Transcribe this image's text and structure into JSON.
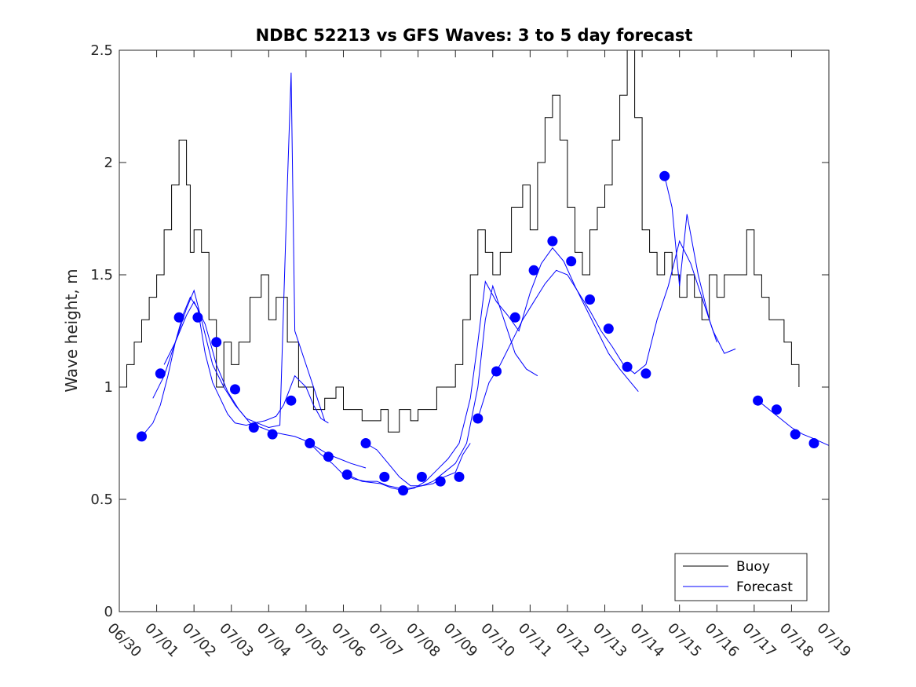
{
  "chart_data": {
    "type": "line",
    "title": "NDBC 52213 vs GFS Waves: 3 to 5 day forecast",
    "xlabel": "",
    "ylabel": "Wave height, m",
    "xlim": [
      "06/30",
      "07/19"
    ],
    "ylim": [
      0,
      2.5
    ],
    "x_tick_labels": [
      "06/30",
      "07/01",
      "07/02",
      "07/03",
      "07/04",
      "07/05",
      "07/06",
      "07/07",
      "07/08",
      "07/09",
      "07/10",
      "07/11",
      "07/12",
      "07/13",
      "07/14",
      "07/15",
      "07/16",
      "07/17",
      "07/18",
      "07/19"
    ],
    "y_ticks": [
      0,
      0.5,
      1,
      1.5,
      2,
      2.5
    ],
    "y_tick_labels": [
      "0",
      "0.5",
      "1",
      "1.5",
      "2",
      "2.5"
    ],
    "legend": {
      "position": "bottom-right",
      "entries": [
        {
          "label": "Buoy",
          "color": "#000000"
        },
        {
          "label": "Forecast",
          "color": "#0000ff"
        }
      ]
    },
    "colors": {
      "buoy": "#000000",
      "forecast": "#0000ff"
    },
    "series": [
      {
        "name": "Buoy",
        "color": "#000000",
        "x": [
          0.0,
          0.2,
          0.4,
          0.6,
          0.8,
          1.0,
          1.2,
          1.4,
          1.6,
          1.8,
          1.9,
          2.0,
          2.2,
          2.4,
          2.6,
          2.8,
          3.0,
          3.2,
          3.5,
          3.8,
          4.0,
          4.2,
          4.5,
          4.8,
          5.0,
          5.2,
          5.5,
          5.8,
          6.0,
          6.5,
          7.0,
          7.2,
          7.5,
          7.8,
          8.0,
          8.5,
          9.0,
          9.2,
          9.4,
          9.6,
          9.8,
          10.0,
          10.2,
          10.5,
          10.8,
          11.0,
          11.2,
          11.4,
          11.6,
          11.8,
          12.0,
          12.2,
          12.4,
          12.6,
          12.8,
          13.0,
          13.2,
          13.4,
          13.6,
          13.8,
          14.0,
          14.2,
          14.4,
          14.6,
          14.8,
          15.0,
          15.2,
          15.4,
          15.6,
          15.8,
          16.0,
          16.2,
          16.5,
          16.8,
          17.0,
          17.2,
          17.4,
          17.6,
          17.8,
          18.0,
          18.2
        ],
        "y": [
          1.0,
          1.1,
          1.2,
          1.3,
          1.4,
          1.5,
          1.7,
          1.9,
          2.1,
          1.9,
          1.6,
          1.7,
          1.6,
          1.3,
          1.0,
          1.2,
          1.1,
          1.2,
          1.4,
          1.5,
          1.3,
          1.4,
          1.2,
          1.0,
          1.0,
          0.9,
          0.95,
          1.0,
          0.9,
          0.85,
          0.9,
          0.8,
          0.9,
          0.85,
          0.9,
          1.0,
          1.1,
          1.3,
          1.5,
          1.7,
          1.6,
          1.5,
          1.6,
          1.8,
          1.9,
          1.7,
          2.0,
          2.2,
          2.3,
          2.1,
          1.8,
          1.6,
          1.5,
          1.7,
          1.8,
          1.9,
          2.1,
          2.3,
          2.5,
          2.2,
          1.7,
          1.6,
          1.5,
          1.6,
          1.5,
          1.4,
          1.5,
          1.4,
          1.3,
          1.5,
          1.4,
          1.5,
          1.5,
          1.7,
          1.5,
          1.4,
          1.3,
          1.3,
          1.2,
          1.1,
          1.0
        ]
      },
      {
        "name": "Forecast",
        "color": "#0000ff",
        "x": [
          0.6,
          0.9,
          1.1,
          1.3,
          1.5,
          1.7,
          1.9,
          2.1,
          2.3,
          2.5,
          2.7,
          2.9,
          3.1,
          3.4,
          3.6,
          3.9,
          4.2,
          4.4,
          4.7,
          5.0,
          5.2,
          5.4,
          5.6
        ],
        "y": [
          0.78,
          0.84,
          0.92,
          1.05,
          1.2,
          1.32,
          1.4,
          1.35,
          1.15,
          1.02,
          0.95,
          0.88,
          0.84,
          0.83,
          0.84,
          0.85,
          0.87,
          0.92,
          1.05,
          1.0,
          0.92,
          0.86,
          0.84
        ]
      },
      {
        "name": "",
        "color": "#0000ff",
        "x": [
          0.9,
          1.2,
          1.5,
          1.8,
          2.0,
          2.2,
          2.5,
          2.8,
          3.1,
          3.4,
          3.7,
          4.0,
          4.3,
          4.5,
          4.6,
          4.7,
          4.8,
          5.0,
          5.3,
          5.5
        ],
        "y": [
          0.95,
          1.05,
          1.2,
          1.35,
          1.43,
          1.3,
          1.1,
          1.0,
          0.92,
          0.86,
          0.84,
          0.82,
          0.83,
          1.9,
          2.4,
          1.25,
          1.2,
          1.1,
          0.95,
          0.85
        ]
      },
      {
        "name": "",
        "color": "#0000ff",
        "x": [
          1.2,
          1.5,
          1.8,
          2.0,
          2.3,
          2.6,
          2.9,
          3.2,
          3.5,
          3.8,
          4.1,
          4.4,
          4.7,
          5.0,
          5.3,
          5.6,
          5.9,
          6.2,
          6.6
        ],
        "y": [
          1.1,
          1.2,
          1.32,
          1.38,
          1.28,
          1.1,
          0.98,
          0.9,
          0.84,
          0.82,
          0.8,
          0.79,
          0.78,
          0.76,
          0.73,
          0.7,
          0.68,
          0.66,
          0.64
        ]
      },
      {
        "name": "",
        "color": "#0000ff",
        "x": [
          5.1,
          5.4,
          5.7,
          6.0,
          6.3,
          6.6,
          6.9,
          7.2,
          7.5,
          7.8,
          8.1,
          8.4,
          8.7,
          9.0,
          9.2,
          9.4
        ],
        "y": [
          0.75,
          0.7,
          0.66,
          0.61,
          0.59,
          0.58,
          0.58,
          0.56,
          0.55,
          0.55,
          0.56,
          0.57,
          0.6,
          0.62,
          0.7,
          0.75
        ]
      },
      {
        "name": "",
        "color": "#0000ff",
        "x": [
          6.6,
          6.9,
          7.2,
          7.5,
          7.8,
          8.1,
          8.4,
          8.7,
          9.0,
          9.3,
          9.6,
          9.8,
          10.0,
          10.3,
          10.6,
          10.9,
          11.2
        ],
        "y": [
          0.75,
          0.72,
          0.66,
          0.6,
          0.56,
          0.56,
          0.58,
          0.62,
          0.66,
          0.75,
          1.0,
          1.3,
          1.45,
          1.3,
          1.15,
          1.08,
          1.05
        ]
      },
      {
        "name": "",
        "color": "#0000ff",
        "x": [
          6.1,
          6.5,
          7.0,
          7.3,
          7.6,
          7.9,
          8.2,
          8.5,
          8.8,
          9.1,
          9.4,
          9.6,
          9.8,
          10.1,
          10.4,
          10.7,
          11.0,
          11.3,
          11.6,
          11.9,
          12.2,
          12.5,
          12.8,
          13.1,
          13.4,
          13.7,
          13.9
        ],
        "y": [
          0.61,
          0.58,
          0.57,
          0.55,
          0.54,
          0.55,
          0.58,
          0.63,
          0.68,
          0.75,
          0.95,
          1.2,
          1.47,
          1.38,
          1.32,
          1.25,
          1.42,
          1.55,
          1.62,
          1.56,
          1.45,
          1.35,
          1.25,
          1.15,
          1.08,
          1.02,
          0.98
        ]
      },
      {
        "name": "",
        "color": "#0000ff",
        "x": [
          9.6,
          9.9,
          10.2,
          10.5,
          10.8,
          11.1,
          11.4,
          11.7,
          12.0,
          12.3,
          12.6,
          12.9,
          13.2,
          13.5,
          13.8,
          14.1,
          14.4,
          14.7,
          15.0,
          15.3,
          15.6,
          15.9,
          16.2,
          16.5
        ],
        "y": [
          0.86,
          1.02,
          1.1,
          1.2,
          1.3,
          1.38,
          1.46,
          1.52,
          1.5,
          1.42,
          1.34,
          1.25,
          1.18,
          1.1,
          1.06,
          1.1,
          1.3,
          1.45,
          1.65,
          1.55,
          1.4,
          1.25,
          1.15,
          1.17
        ]
      },
      {
        "name": "",
        "color": "#0000ff",
        "x": [
          14.6,
          14.8,
          15.0,
          15.2,
          15.5,
          15.8,
          16.0
        ],
        "y": [
          1.94,
          1.8,
          1.45,
          1.77,
          1.5,
          1.3,
          1.2
        ]
      },
      {
        "name": "",
        "color": "#0000ff",
        "x": [
          17.1,
          17.4,
          17.7,
          18.0,
          18.3,
          18.6,
          19.0
        ],
        "y": [
          0.94,
          0.9,
          0.86,
          0.82,
          0.79,
          0.77,
          0.74
        ]
      }
    ],
    "markers": {
      "name": "Forecast",
      "color": "#0000ff",
      "x": [
        0.6,
        1.1,
        1.6,
        2.1,
        2.6,
        3.1,
        3.6,
        4.1,
        4.6,
        5.1,
        5.6,
        6.1,
        6.6,
        7.1,
        7.6,
        8.1,
        8.6,
        9.1,
        9.6,
        10.1,
        10.6,
        11.1,
        11.6,
        12.1,
        12.6,
        13.1,
        13.6,
        14.1,
        14.6,
        17.1,
        17.6,
        18.1,
        18.6
      ],
      "y": [
        0.78,
        1.06,
        1.31,
        1.31,
        1.2,
        0.99,
        0.82,
        0.79,
        0.94,
        0.75,
        0.69,
        0.61,
        0.75,
        0.6,
        0.54,
        0.6,
        0.58,
        0.6,
        0.86,
        1.07,
        1.31,
        1.52,
        1.65,
        1.56,
        1.39,
        1.26,
        1.09,
        1.06,
        1.94,
        0.94,
        0.9,
        0.79,
        0.75
      ]
    }
  }
}
